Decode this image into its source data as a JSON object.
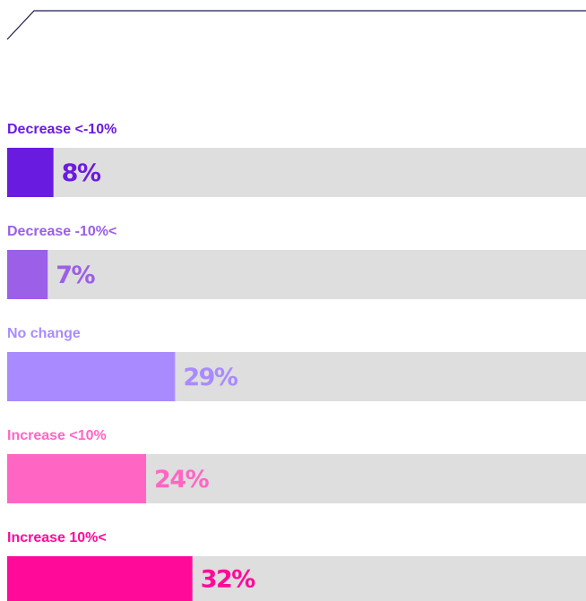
{
  "chart_data": {
    "type": "bar",
    "orientation": "horizontal",
    "categories": [
      "Decrease <-10%",
      "Decrease -10%<",
      "No change",
      "Increase <10%",
      "Increase 10%<"
    ],
    "values": [
      8,
      7,
      29,
      24,
      32
    ],
    "value_labels": [
      "8%",
      "7%",
      "29%",
      "24%",
      "32%"
    ],
    "colors": [
      "#6a1be0",
      "#9b5fe8",
      "#a98bff",
      "#ff66c4",
      "#ff0a99"
    ],
    "xlim": [
      0,
      100
    ]
  }
}
